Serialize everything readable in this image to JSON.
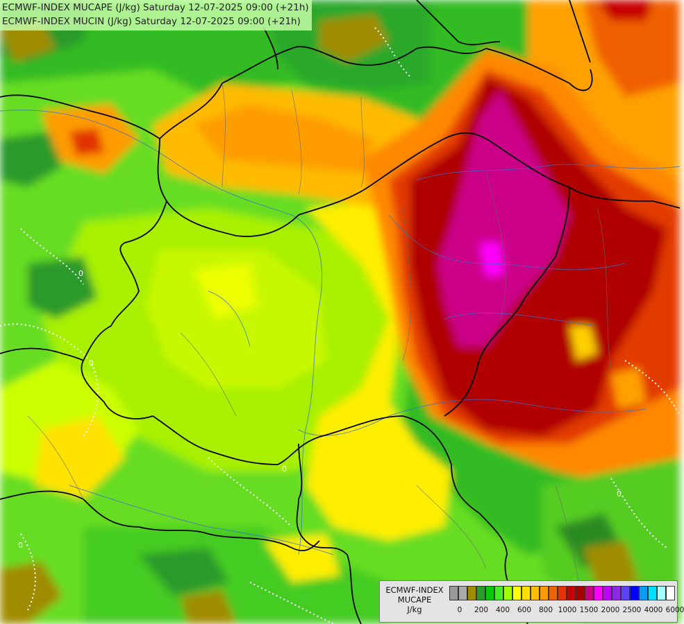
{
  "titles": {
    "line1": "ECMWF-INDEX MUCAPE (J/kg) Saturday 12-07-2025 09:00 (+21h)",
    "line2": "ECMWF-INDEX MUCIN (J/kg) Saturday 12-07-2025 09:00 (+21h)"
  },
  "contour_label": "0",
  "legend": {
    "line1": "ECMWF-INDEX",
    "line2": "MUCAPE",
    "line3": "J/kg",
    "colors": [
      "#9a9a9a",
      "#aaaaaa",
      "#a08c00",
      "#2a9a2a",
      "#00cc00",
      "#44ee22",
      "#a0ff00",
      "#ffff00",
      "#ffe000",
      "#ffbf00",
      "#ff9a00",
      "#f26400",
      "#e43100",
      "#c80000",
      "#a80000",
      "#cc0080",
      "#ff00ff",
      "#c000ff",
      "#8a2be2",
      "#5a40ff",
      "#0000ff",
      "#00a0ff",
      "#00e0ff",
      "#a0ffff",
      "#ffffff"
    ],
    "ticks": [
      "0",
      "200",
      "400",
      "600",
      "800",
      "1000",
      "1500",
      "2000",
      "2500",
      "4000",
      "6000"
    ]
  }
}
